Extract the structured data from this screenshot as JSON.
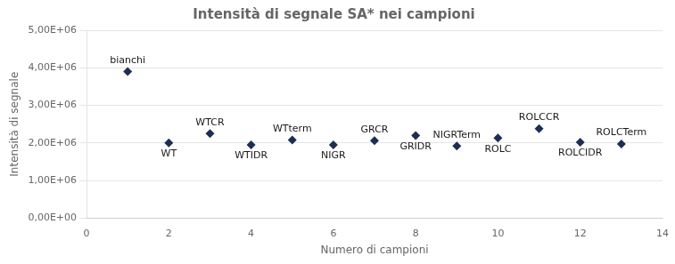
{
  "chart_data": {
    "type": "scatter",
    "title": "Intensità di segnale SA* nei campioni",
    "xlabel": "Numero di campioni",
    "ylabel": "Intensità di segnale",
    "x": [
      1,
      2,
      3,
      4,
      5,
      6,
      7,
      8,
      9,
      10,
      11,
      12,
      13
    ],
    "values": [
      3900000,
      2000000,
      2250000,
      1950000,
      2080000,
      1950000,
      2060000,
      2200000,
      1920000,
      2130000,
      2380000,
      2020000,
      1970000
    ],
    "annotations": [
      "bianchi",
      "WT",
      "WTCR",
      "WTIDR",
      "WTterm",
      "NIGR",
      "GRCR",
      "GRIDR",
      "NIGRTerm",
      "ROLC",
      "ROLCCR",
      "ROLCIDR",
      "ROLCTerm"
    ],
    "color": "#1c2f52",
    "marker": "diamond",
    "xlim": [
      0,
      14
    ],
    "xticks": [
      0,
      2,
      4,
      6,
      8,
      10,
      12,
      14
    ],
    "ylim": [
      0,
      5000000
    ],
    "yticks": [
      {
        "value": 0,
        "label": "0,00E+00"
      },
      {
        "value": 1000000,
        "label": "1,00E+06"
      },
      {
        "value": 2000000,
        "label": "2,00E+06"
      },
      {
        "value": 3000000,
        "label": "3,00E+06"
      },
      {
        "value": 4000000,
        "label": "4,00E+06"
      },
      {
        "value": 5000000,
        "label": "5,00E+06"
      }
    ],
    "grid": "y"
  }
}
